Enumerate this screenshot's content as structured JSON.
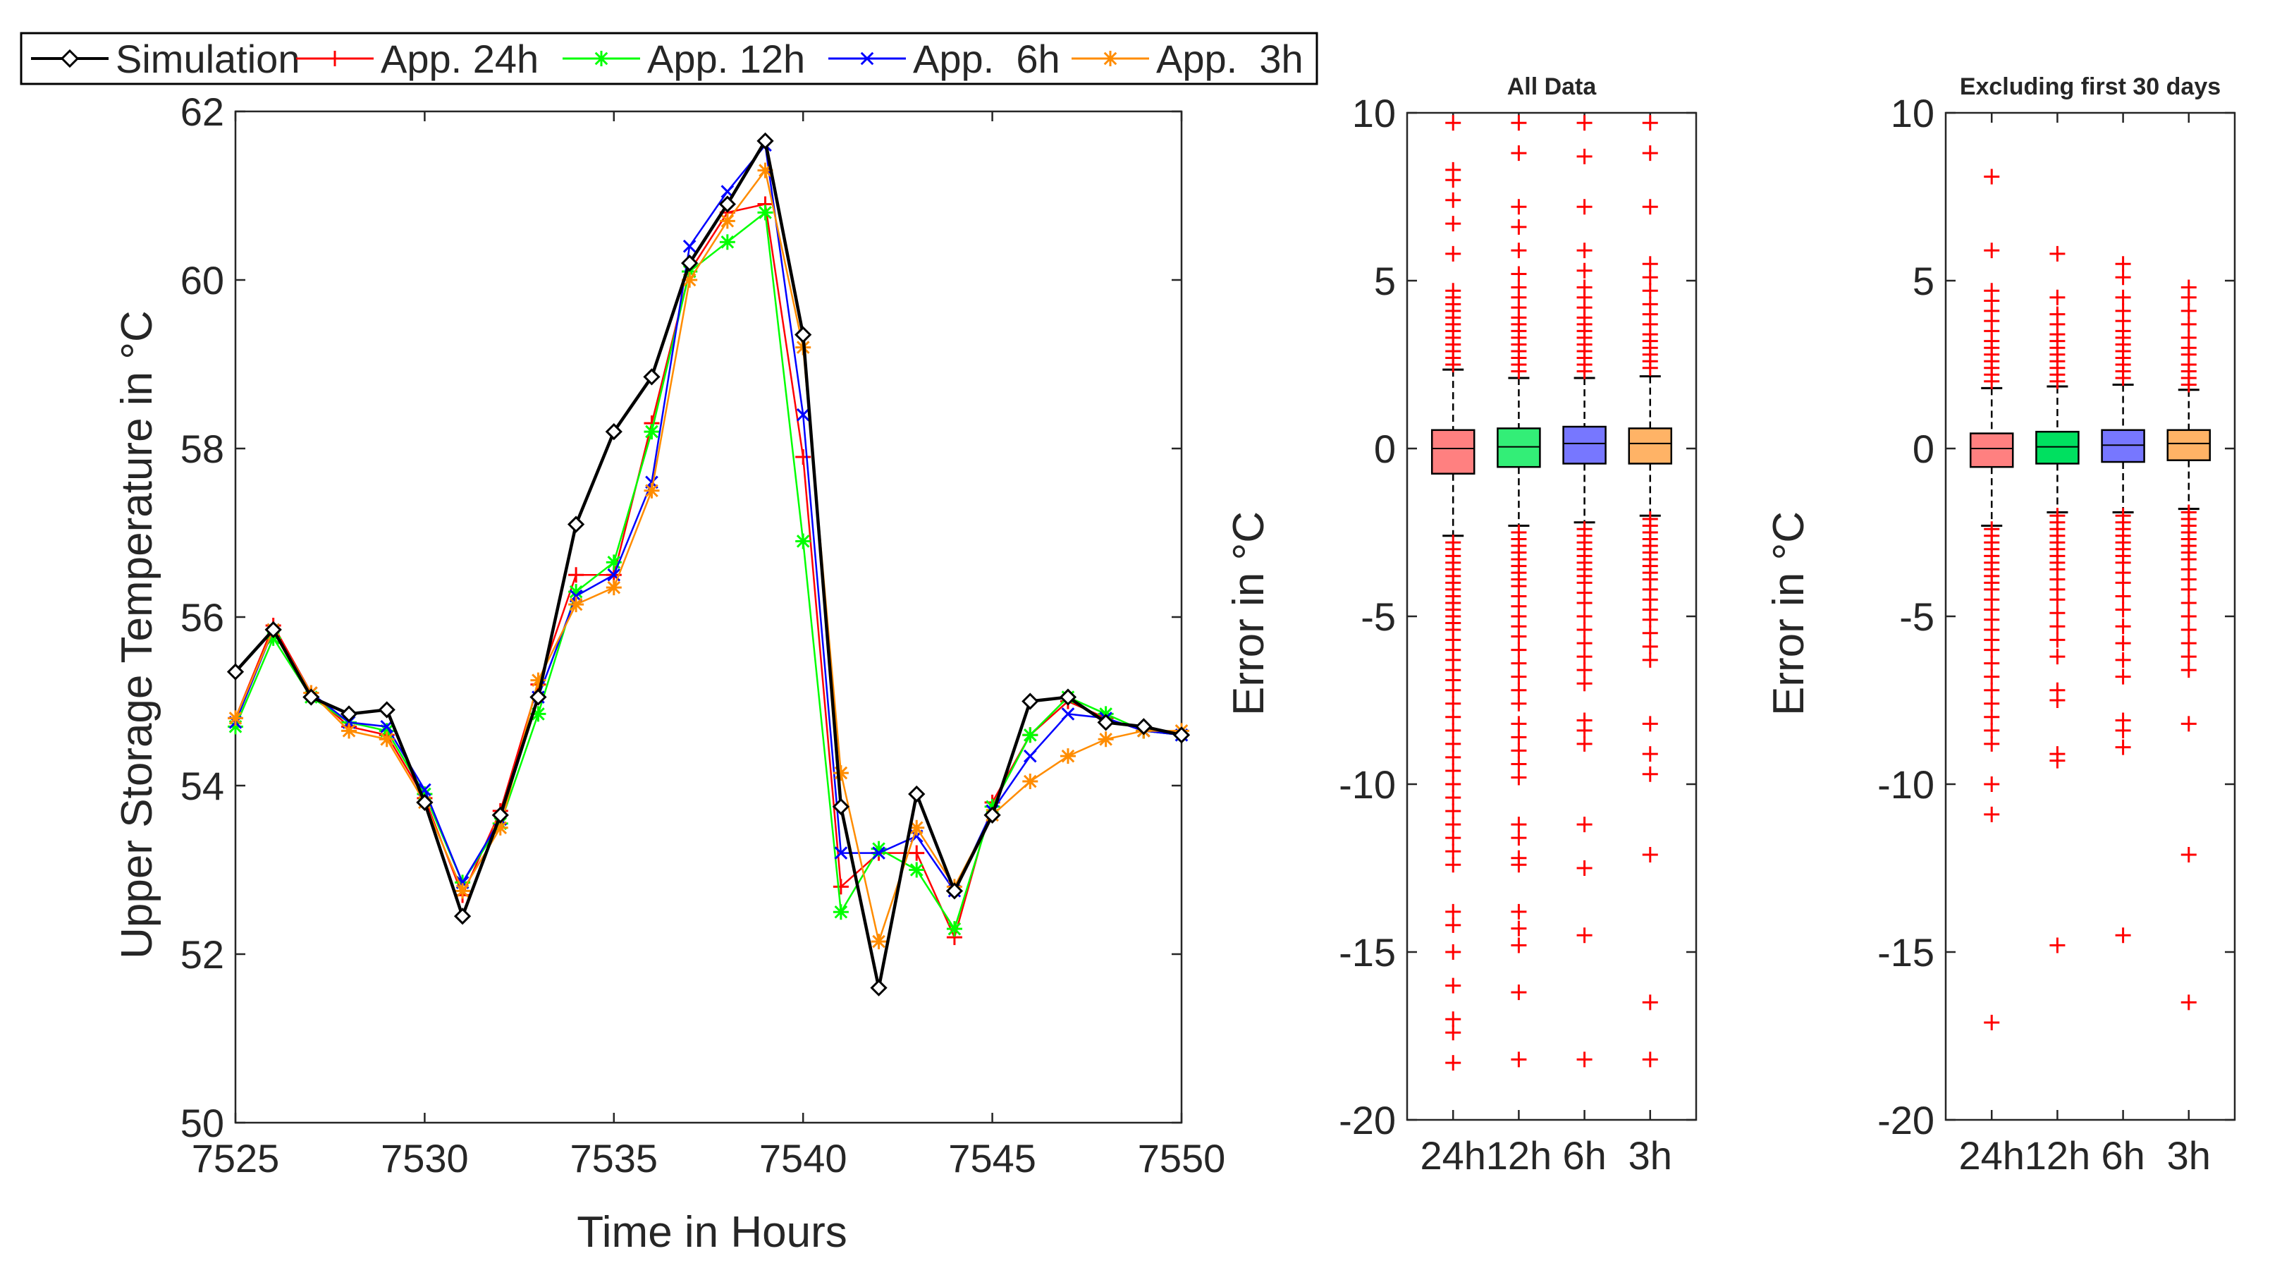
{
  "chart_data": [
    {
      "type": "line",
      "xlabel": "Time in Hours",
      "ylabel": "Upper Storage Temperature in °C",
      "xlim": [
        7525,
        7550
      ],
      "ylim": [
        50,
        62
      ],
      "xticks": [
        "7525",
        "7530",
        "7535",
        "7540",
        "7545",
        "7550"
      ],
      "yticks": [
        "50",
        "52",
        "54",
        "56",
        "58",
        "60",
        "62"
      ],
      "legend": {
        "position": "top",
        "entries": [
          "Simulation",
          "App. 24h",
          "App. 12h",
          "App.  6h",
          "App.  3h"
        ]
      },
      "x": [
        7525,
        7526,
        7527,
        7528,
        7529,
        7530,
        7531,
        7532,
        7533,
        7534,
        7535,
        7536,
        7537,
        7538,
        7539,
        7540,
        7541,
        7542,
        7543,
        7544,
        7545,
        7546,
        7547,
        7548,
        7549,
        7550
      ],
      "series": [
        {
          "name": "App. 24h",
          "color": "#ff0000",
          "marker": "plus",
          "values": [
            54.8,
            55.9,
            55.1,
            54.7,
            54.6,
            53.85,
            52.7,
            53.7,
            55.2,
            56.5,
            56.5,
            58.3,
            60.1,
            60.8,
            60.9,
            57.9,
            52.8,
            53.2,
            53.2,
            52.2,
            53.8,
            54.6,
            55.0,
            54.8,
            54.65,
            54.6
          ]
        },
        {
          "name": "App. 12h",
          "color": "#00ff00",
          "marker": "asterisk",
          "values": [
            54.7,
            55.75,
            55.05,
            54.75,
            54.65,
            53.9,
            52.85,
            53.55,
            54.85,
            56.3,
            56.65,
            58.2,
            60.1,
            60.45,
            60.8,
            56.9,
            52.5,
            53.25,
            53.0,
            52.3,
            53.75,
            54.6,
            55.05,
            54.85,
            54.65,
            54.6
          ]
        },
        {
          "name": "App.  6h",
          "color": "#0000ff",
          "marker": "cross",
          "values": [
            54.75,
            55.85,
            55.1,
            54.75,
            54.7,
            53.95,
            52.85,
            53.6,
            55.05,
            56.25,
            56.5,
            57.6,
            60.4,
            61.05,
            61.6,
            58.4,
            53.2,
            53.2,
            53.4,
            52.75,
            53.7,
            54.35,
            54.85,
            54.8,
            54.65,
            54.6
          ]
        },
        {
          "name": "App.  3h",
          "color": "#ff8c00",
          "marker": "star",
          "values": [
            54.8,
            55.85,
            55.1,
            54.65,
            54.55,
            53.8,
            52.75,
            53.5,
            55.25,
            56.15,
            56.35,
            57.5,
            60.0,
            60.7,
            61.3,
            59.2,
            54.15,
            52.15,
            53.5,
            52.8,
            53.65,
            54.05,
            54.35,
            54.55,
            54.65,
            54.65
          ]
        },
        {
          "name": "Simulation",
          "color": "#000000",
          "marker": "diamond",
          "values": [
            55.35,
            55.85,
            55.05,
            54.85,
            54.9,
            53.8,
            52.45,
            53.65,
            55.05,
            57.1,
            58.2,
            58.85,
            60.2,
            60.9,
            61.65,
            59.35,
            53.75,
            51.6,
            53.9,
            52.75,
            53.65,
            55.0,
            55.05,
            54.75,
            54.7,
            54.6
          ]
        }
      ]
    },
    {
      "type": "box",
      "title": "All Data",
      "ylabel": "Error in °C",
      "ylim": [
        -20,
        10
      ],
      "yticks": [
        "-20",
        "-15",
        "-10",
        "-5",
        "0",
        "5",
        "10"
      ],
      "categories": [
        "24h",
        "12h",
        "6h",
        "3h"
      ],
      "boxes": [
        {
          "name": "24h",
          "color": "#ff8080",
          "whisker_low": -2.6,
          "q1": -0.75,
          "median": 0.0,
          "q3": 0.55,
          "whisker_high": 2.35,
          "outliers_high": [
            2.5,
            2.7,
            2.9,
            3.1,
            3.3,
            3.5,
            3.7,
            3.9,
            4.1,
            4.3,
            4.5,
            4.7,
            5.8,
            6.7,
            7.4,
            8.0,
            8.3,
            9.7
          ],
          "outliers_low": [
            -2.8,
            -3.0,
            -3.2,
            -3.4,
            -3.6,
            -3.8,
            -4.0,
            -4.2,
            -4.4,
            -4.6,
            -4.8,
            -5.0,
            -5.2,
            -5.4,
            -5.7,
            -6.0,
            -6.3,
            -6.6,
            -6.9,
            -7.2,
            -7.6,
            -8.0,
            -8.4,
            -8.8,
            -9.2,
            -9.6,
            -10.0,
            -10.4,
            -10.8,
            -11.2,
            -11.6,
            -12.0,
            -12.4,
            -13.8,
            -14.2,
            -15.0,
            -16.0,
            -17.0,
            -17.4,
            -18.3
          ]
        },
        {
          "name": "12h",
          "color": "#33ee77",
          "whisker_low": -2.3,
          "q1": -0.55,
          "median": 0.05,
          "q3": 0.6,
          "whisker_high": 2.1,
          "outliers_high": [
            2.3,
            2.5,
            2.7,
            2.9,
            3.1,
            3.3,
            3.5,
            3.7,
            3.9,
            4.2,
            4.5,
            4.8,
            5.2,
            5.9,
            6.6,
            7.2,
            8.8,
            9.7
          ],
          "outliers_low": [
            -2.5,
            -2.7,
            -2.9,
            -3.1,
            -3.3,
            -3.5,
            -3.7,
            -3.9,
            -4.1,
            -4.4,
            -4.7,
            -5.0,
            -5.3,
            -5.6,
            -6.0,
            -6.4,
            -6.8,
            -7.2,
            -7.6,
            -8.2,
            -8.6,
            -9.0,
            -9.4,
            -9.8,
            -11.2,
            -11.6,
            -12.2,
            -12.4,
            -13.8,
            -14.3,
            -14.8,
            -16.2,
            -18.2
          ]
        },
        {
          "name": "6h",
          "color": "#7777ff",
          "whisker_low": -2.2,
          "q1": -0.45,
          "median": 0.15,
          "q3": 0.65,
          "whisker_high": 2.1,
          "outliers_high": [
            2.3,
            2.5,
            2.7,
            2.9,
            3.1,
            3.3,
            3.5,
            3.7,
            3.9,
            4.2,
            4.5,
            4.8,
            5.3,
            5.9,
            7.2,
            8.7,
            9.7
          ],
          "outliers_low": [
            -2.4,
            -2.6,
            -2.8,
            -3.0,
            -3.2,
            -3.4,
            -3.6,
            -3.8,
            -4.0,
            -4.3,
            -4.6,
            -5.0,
            -5.4,
            -5.8,
            -6.2,
            -6.6,
            -7.0,
            -8.1,
            -8.4,
            -8.8,
            -11.2,
            -12.5,
            -14.5,
            -18.2
          ]
        },
        {
          "name": "3h",
          "color": "#ffb366",
          "whisker_low": -2.0,
          "q1": -0.45,
          "median": 0.15,
          "q3": 0.6,
          "whisker_high": 2.15,
          "outliers_high": [
            2.4,
            2.6,
            2.8,
            3.0,
            3.2,
            3.4,
            3.7,
            4.0,
            4.3,
            4.7,
            5.1,
            5.5,
            7.2,
            8.8,
            9.7
          ],
          "outliers_low": [
            -2.1,
            -2.3,
            -2.5,
            -2.7,
            -2.9,
            -3.1,
            -3.3,
            -3.5,
            -3.7,
            -3.9,
            -4.2,
            -4.5,
            -4.8,
            -5.1,
            -5.5,
            -5.9,
            -6.3,
            -8.2,
            -9.1,
            -9.7,
            -12.1,
            -16.5,
            -18.2
          ]
        }
      ]
    },
    {
      "type": "box",
      "title": "Excluding first 30 days",
      "ylabel": "Error in °C",
      "ylim": [
        -20,
        10
      ],
      "yticks": [
        "-20",
        "-15",
        "-10",
        "-5",
        "0",
        "5",
        "10"
      ],
      "categories": [
        "24h",
        "12h",
        "6h",
        "3h"
      ],
      "boxes": [
        {
          "name": "24h",
          "color": "#ff8080",
          "whisker_low": -2.3,
          "q1": -0.55,
          "median": 0.0,
          "q3": 0.45,
          "whisker_high": 1.8,
          "outliers_high": [
            2.0,
            2.2,
            2.4,
            2.6,
            2.8,
            3.0,
            3.2,
            3.5,
            3.8,
            4.1,
            4.4,
            4.7,
            5.9,
            8.1
          ],
          "outliers_low": [
            -2.4,
            -2.6,
            -2.8,
            -3.0,
            -3.2,
            -3.4,
            -3.6,
            -3.8,
            -4.0,
            -4.2,
            -4.5,
            -4.8,
            -5.1,
            -5.4,
            -5.7,
            -6.0,
            -6.4,
            -6.8,
            -7.2,
            -7.6,
            -8.0,
            -8.4,
            -8.8,
            -10.0,
            -10.9,
            -17.1
          ]
        },
        {
          "name": "12h",
          "color": "#00e060",
          "whisker_low": -1.9,
          "q1": -0.45,
          "median": 0.05,
          "q3": 0.5,
          "whisker_high": 1.85,
          "outliers_high": [
            2.0,
            2.2,
            2.4,
            2.6,
            2.8,
            3.0,
            3.2,
            3.4,
            3.7,
            4.0,
            4.5,
            5.8
          ],
          "outliers_low": [
            -2.0,
            -2.2,
            -2.4,
            -2.6,
            -2.8,
            -3.0,
            -3.2,
            -3.4,
            -3.6,
            -3.9,
            -4.2,
            -4.5,
            -4.9,
            -5.3,
            -5.7,
            -6.2,
            -7.2,
            -7.5,
            -9.1,
            -9.3,
            -14.8
          ]
        },
        {
          "name": "6h",
          "color": "#7777ff",
          "whisker_low": -1.9,
          "q1": -0.4,
          "median": 0.1,
          "q3": 0.55,
          "whisker_high": 1.9,
          "outliers_high": [
            2.1,
            2.3,
            2.5,
            2.7,
            2.9,
            3.1,
            3.3,
            3.5,
            3.8,
            4.1,
            4.5,
            5.1,
            5.5
          ],
          "outliers_low": [
            -2.0,
            -2.2,
            -2.4,
            -2.6,
            -2.8,
            -3.0,
            -3.2,
            -3.4,
            -3.7,
            -4.0,
            -4.4,
            -4.8,
            -5.3,
            -5.8,
            -6.3,
            -6.8,
            -8.1,
            -8.4,
            -8.9,
            -14.5
          ]
        },
        {
          "name": "3h",
          "color": "#ffb366",
          "whisker_low": -1.8,
          "q1": -0.35,
          "median": 0.15,
          "q3": 0.55,
          "whisker_high": 1.75,
          "outliers_high": [
            1.9,
            2.1,
            2.3,
            2.5,
            2.8,
            3.0,
            3.3,
            3.7,
            4.1,
            4.5,
            4.8
          ],
          "outliers_low": [
            -1.9,
            -2.1,
            -2.3,
            -2.5,
            -2.7,
            -2.9,
            -3.1,
            -3.3,
            -3.6,
            -3.9,
            -4.2,
            -4.6,
            -5.0,
            -5.4,
            -5.8,
            -6.2,
            -6.6,
            -8.2,
            -12.1,
            -16.5
          ]
        }
      ]
    }
  ]
}
